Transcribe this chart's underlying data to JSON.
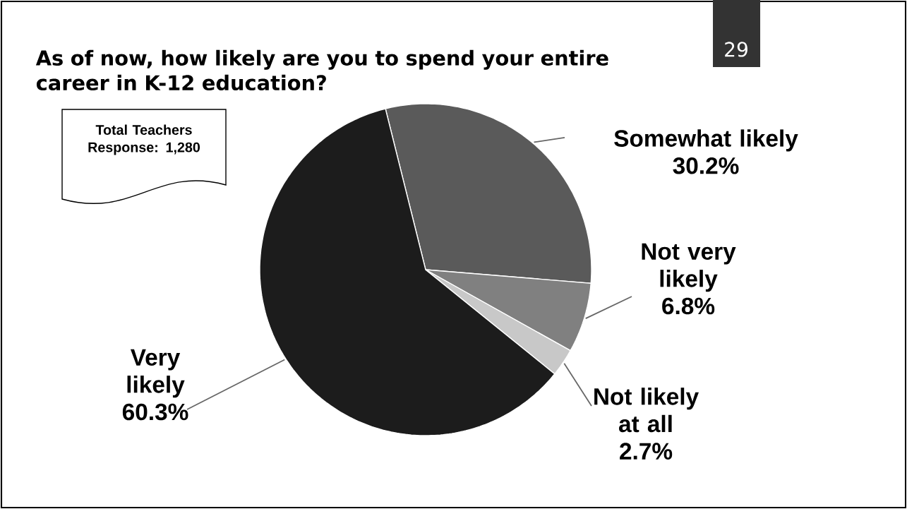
{
  "chart_data": {
    "type": "pie",
    "title": "As of now, how likely are you to spend your entire career in K-12 education?",
    "categories": [
      "Somewhat likely",
      "Not very likely",
      "Not likely at all",
      "Very likely"
    ],
    "values": [
      30.2,
      6.8,
      2.7,
      60.3
    ],
    "value_labels": [
      "30.2%",
      "6.8%",
      "2.7%",
      "60.3%"
    ],
    "colors": [
      "#5a5a5a",
      "#808080",
      "#c8c8c8",
      "#1c1c1c"
    ],
    "annotations": [
      "29",
      "Total Teachers Response: 1,280"
    ]
  }
}
